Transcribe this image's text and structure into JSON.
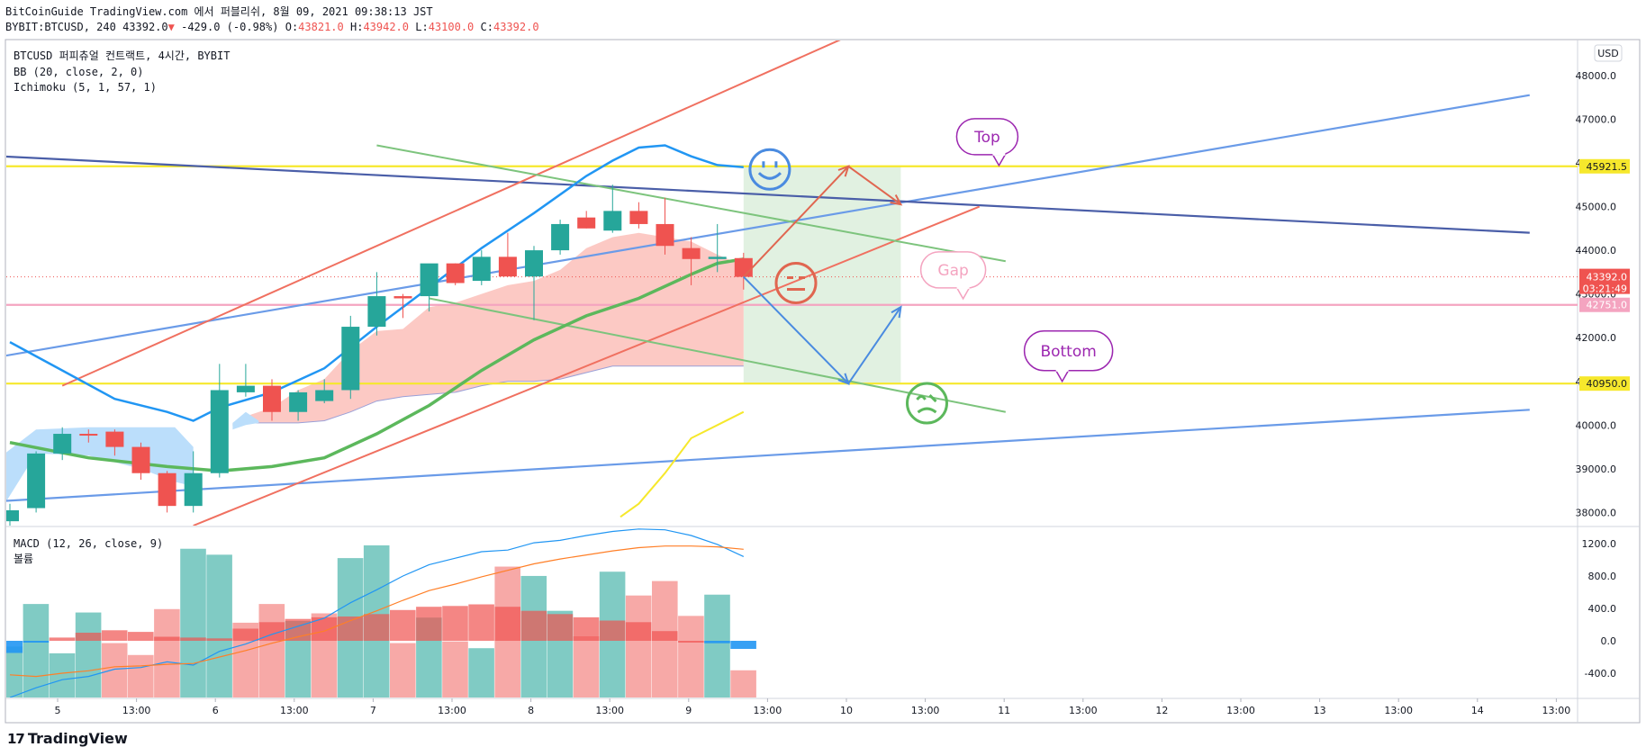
{
  "header": {
    "line1": "BitCoinGuide TradingView.com 에서 퍼블리쉬, 8월 09, 2021 09:38:13 JST",
    "symbol": "BYBIT:BTCUSD, 240",
    "last": "43392.0",
    "arrow": "▼",
    "change": "-429.0 (-0.98%)",
    "o_label": "O:",
    "o": "43821.0",
    "h_label": "H:",
    "h": "43942.0",
    "l_label": "L:",
    "l": "43100.0",
    "c_label": "C:",
    "c": "43392.0"
  },
  "legend": {
    "title": "BTCUSD 퍼피츄얼 컨트랙트, 4시간, BYBIT",
    "bb": "BB (20, close, 2, 0)",
    "ichimoku": "Ichimoku (5, 1, 57, 1)",
    "macd": "MACD (12, 26, close, 9)",
    "volume": "볼륨"
  },
  "currency": "USD",
  "footer": {
    "logo": "17",
    "brand": "TradingView"
  },
  "annotations": {
    "top": "Top",
    "gap": "Gap",
    "bottom": "Bottom"
  },
  "colors": {
    "up": "#26a69a",
    "down": "#ef5350",
    "upVol": "#80cbc4",
    "downVol": "#f7a9a7",
    "bbBasis": "#2196f3",
    "trendBlue": "#6a9be8",
    "trendNavy": "#4a5ea8",
    "trendRed": "#f07060",
    "trendGreen": "#7dc47d",
    "cloud": "#fcc9c4",
    "cloudBlue": "#bbdefb",
    "kijun": "#5cb85c",
    "yellow": "#f6e82c",
    "pinkLine": "#f4a4c0",
    "smileBlue": "#4a8be0",
    "neutralRed": "#e06650",
    "frownGreen": "#5cb85c",
    "purple": "#9c27b0"
  },
  "chart_data": [
    {
      "type": "candlestick",
      "title": "BTCUSD 퍼피츄얼 컨트랙트, 4시간, BYBIT",
      "ylim": [
        37700,
        48800
      ],
      "price_ticks": [
        "48000.0",
        "47000.0",
        "46000.0",
        "45000.0",
        "44000.0",
        "43000.0",
        "42000.0",
        "41000.0",
        "40000.0",
        "39000.0",
        "38000.0"
      ],
      "price_tick_values": [
        48000,
        47000,
        46000,
        45000,
        44000,
        43000,
        42000,
        41000,
        40000,
        39000,
        38000
      ],
      "time_ticks": [
        "5",
        "13:00",
        "6",
        "13:00",
        "7",
        "13:00",
        "8",
        "13:00",
        "9",
        "13:00",
        "10",
        "13:00",
        "11",
        "13:00",
        "12",
        "13:00",
        "13",
        "13:00",
        "14",
        "13:00"
      ],
      "price_labels": [
        {
          "value": 45921.5,
          "text": "45921.5",
          "style": "yellow"
        },
        {
          "value": 43392.0,
          "text": "43392.0",
          "sub": "03:21:49",
          "style": "red"
        },
        {
          "value": 42751.0,
          "text": "42751.0",
          "style": "pink"
        },
        {
          "value": 40950.0,
          "text": "40950.0",
          "style": "yellow"
        }
      ],
      "candles": [
        {
          "o": 37800,
          "h": 38200,
          "l": 37500,
          "c": 38050
        },
        {
          "o": 38100,
          "h": 39400,
          "l": 38000,
          "c": 39350
        },
        {
          "o": 39350,
          "h": 39950,
          "l": 39200,
          "c": 39800
        },
        {
          "o": 39800,
          "h": 39900,
          "l": 39600,
          "c": 39780
        },
        {
          "o": 39850,
          "h": 39900,
          "l": 39300,
          "c": 39500
        },
        {
          "o": 39500,
          "h": 39600,
          "l": 38750,
          "c": 38900
        },
        {
          "o": 38900,
          "h": 38950,
          "l": 38000,
          "c": 38150
        },
        {
          "o": 38150,
          "h": 39400,
          "l": 38000,
          "c": 38900
        },
        {
          "o": 38900,
          "h": 41400,
          "l": 38800,
          "c": 40800
        },
        {
          "o": 40750,
          "h": 41400,
          "l": 40650,
          "c": 40900
        },
        {
          "o": 40900,
          "h": 41050,
          "l": 40100,
          "c": 40300
        },
        {
          "o": 40300,
          "h": 40800,
          "l": 40100,
          "c": 40750
        },
        {
          "o": 40550,
          "h": 41050,
          "l": 40500,
          "c": 40800
        },
        {
          "o": 40800,
          "h": 42500,
          "l": 40600,
          "c": 42250
        },
        {
          "o": 42250,
          "h": 43500,
          "l": 42050,
          "c": 42950
        },
        {
          "o": 42950,
          "h": 43000,
          "l": 42450,
          "c": 42900
        },
        {
          "o": 42950,
          "h": 43600,
          "l": 42600,
          "c": 43700
        },
        {
          "o": 43700,
          "h": 43700,
          "l": 43200,
          "c": 43250
        },
        {
          "o": 43300,
          "h": 44000,
          "l": 43200,
          "c": 43850
        },
        {
          "o": 43850,
          "h": 44400,
          "l": 43400,
          "c": 43400
        },
        {
          "o": 43400,
          "h": 44100,
          "l": 42400,
          "c": 44000
        },
        {
          "o": 44000,
          "h": 44700,
          "l": 43900,
          "c": 44600
        },
        {
          "o": 44750,
          "h": 44900,
          "l": 44500,
          "c": 44500
        },
        {
          "o": 44450,
          "h": 45500,
          "l": 44400,
          "c": 44900
        },
        {
          "o": 44900,
          "h": 45100,
          "l": 44500,
          "c": 44600
        },
        {
          "o": 44600,
          "h": 45200,
          "l": 43900,
          "c": 44100
        },
        {
          "o": 44050,
          "h": 44300,
          "l": 43200,
          "c": 43800
        },
        {
          "o": 43800,
          "h": 44600,
          "l": 43500,
          "c": 43850
        },
        {
          "o": 43821,
          "h": 43942,
          "l": 43100,
          "c": 43392
        }
      ],
      "bb_basis": [
        {
          "i": 0,
          "v": 41900
        },
        {
          "i": 2,
          "v": 41250
        },
        {
          "i": 4,
          "v": 40600
        },
        {
          "i": 6,
          "v": 40300
        },
        {
          "i": 7,
          "v": 40100
        },
        {
          "i": 8,
          "v": 40400
        },
        {
          "i": 10,
          "v": 40750
        },
        {
          "i": 12,
          "v": 41300
        },
        {
          "i": 14,
          "v": 42250
        },
        {
          "i": 16,
          "v": 43150
        },
        {
          "i": 18,
          "v": 44050
        },
        {
          "i": 20,
          "v": 44850
        },
        {
          "i": 22,
          "v": 45700
        },
        {
          "i": 23,
          "v": 46050
        },
        {
          "i": 24,
          "v": 46350
        },
        {
          "i": 25,
          "v": 46400
        },
        {
          "i": 26,
          "v": 46150
        },
        {
          "i": 27,
          "v": 45950
        },
        {
          "i": 28,
          "v": 45900
        }
      ],
      "kijun": [
        {
          "i": 0,
          "v": 39600
        },
        {
          "i": 3,
          "v": 39250
        },
        {
          "i": 6,
          "v": 39050
        },
        {
          "i": 8,
          "v": 38950
        },
        {
          "i": 10,
          "v": 39050
        },
        {
          "i": 12,
          "v": 39250
        },
        {
          "i": 14,
          "v": 39800
        },
        {
          "i": 16,
          "v": 40450
        },
        {
          "i": 18,
          "v": 41250
        },
        {
          "i": 20,
          "v": 41950
        },
        {
          "i": 22,
          "v": 42500
        },
        {
          "i": 24,
          "v": 42900
        },
        {
          "i": 26,
          "v": 43450
        },
        {
          "i": 27,
          "v": 43700
        },
        {
          "i": 28,
          "v": 43800
        }
      ],
      "chikou": [
        {
          "i": 23.3,
          "v": 37900
        },
        {
          "i": 24,
          "v": 38200
        },
        {
          "i": 25,
          "v": 38900
        },
        {
          "i": 26,
          "v": 39700
        },
        {
          "i": 27,
          "v": 40000
        },
        {
          "i": 28,
          "v": 40300
        }
      ],
      "cloud_upper": [
        {
          "i": 8.5,
          "v": 40050
        },
        {
          "i": 9,
          "v": 40200
        },
        {
          "i": 10,
          "v": 40400
        },
        {
          "i": 11,
          "v": 40800
        },
        {
          "i": 12,
          "v": 41050
        },
        {
          "i": 13,
          "v": 41700
        },
        {
          "i": 14,
          "v": 42150
        },
        {
          "i": 15,
          "v": 42200
        },
        {
          "i": 16,
          "v": 42700
        },
        {
          "i": 17,
          "v": 42800
        },
        {
          "i": 18,
          "v": 43000
        },
        {
          "i": 19,
          "v": 43200
        },
        {
          "i": 20,
          "v": 43300
        },
        {
          "i": 21,
          "v": 43550
        },
        {
          "i": 22,
          "v": 44050
        },
        {
          "i": 23,
          "v": 44300
        },
        {
          "i": 24,
          "v": 44400
        },
        {
          "i": 25,
          "v": 44300
        },
        {
          "i": 26,
          "v": 44200
        },
        {
          "i": 27,
          "v": 43900
        },
        {
          "i": 28,
          "v": 43650
        }
      ],
      "cloud_lower": [
        {
          "i": 8.5,
          "v": 40000
        },
        {
          "i": 9,
          "v": 40050
        },
        {
          "i": 10,
          "v": 40050
        },
        {
          "i": 11,
          "v": 40050
        },
        {
          "i": 12,
          "v": 40100
        },
        {
          "i": 13,
          "v": 40300
        },
        {
          "i": 14,
          "v": 40550
        },
        {
          "i": 15,
          "v": 40650
        },
        {
          "i": 16,
          "v": 40700
        },
        {
          "i": 17,
          "v": 40750
        },
        {
          "i": 18,
          "v": 40900
        },
        {
          "i": 19,
          "v": 41000
        },
        {
          "i": 20,
          "v": 41000
        },
        {
          "i": 21,
          "v": 41050
        },
        {
          "i": 22,
          "v": 41200
        },
        {
          "i": 23,
          "v": 41350
        },
        {
          "i": 24,
          "v": 41350
        },
        {
          "i": 25,
          "v": 41350
        },
        {
          "i": 26,
          "v": 41350
        },
        {
          "i": 27,
          "v": 41350
        },
        {
          "i": 28,
          "v": 41350
        }
      ],
      "cloud_blue_upper": [
        {
          "i": -0.3,
          "v": 39300
        },
        {
          "i": 1,
          "v": 39900
        },
        {
          "i": 3,
          "v": 39950
        },
        {
          "i": 5,
          "v": 39950
        },
        {
          "i": 6.3,
          "v": 39950
        },
        {
          "i": 7,
          "v": 39500
        }
      ],
      "cloud_blue_lower": [
        {
          "i": -0.3,
          "v": 38100
        },
        {
          "i": 1,
          "v": 39350
        },
        {
          "i": 3,
          "v": 39300
        },
        {
          "i": 5,
          "v": 39000
        },
        {
          "i": 6.3,
          "v": 38700
        },
        {
          "i": 7,
          "v": 38600
        }
      ],
      "cloud_blue2_upper": [
        {
          "i": 8.5,
          "v": 40050
        },
        {
          "i": 9,
          "v": 40300
        },
        {
          "i": 9.5,
          "v": 40100
        }
      ],
      "cloud_blue2_lower": [
        {
          "i": 8.5,
          "v": 39900
        },
        {
          "i": 9,
          "v": 40000
        },
        {
          "i": 9.5,
          "v": 40050
        }
      ],
      "h_lines": [
        {
          "value": 45921.5,
          "color": "yellow"
        },
        {
          "value": 42751.0,
          "color": "pinkLine"
        },
        {
          "value": 40950.0,
          "color": "yellow"
        }
      ],
      "trendlines": [
        {
          "p1": {
            "i": -2,
            "v": 41400
          },
          "p2": {
            "i": 58,
            "v": 47550
          },
          "color": "trendBlue",
          "w": 2.2
        },
        {
          "p1": {
            "i": -2,
            "v": 38200
          },
          "p2": {
            "i": 58,
            "v": 40350
          },
          "color": "trendBlue",
          "w": 2.2
        },
        {
          "p1": {
            "i": -2,
            "v": 46200
          },
          "p2": {
            "i": 58,
            "v": 44400
          },
          "color": "trendNavy",
          "w": 2.2
        },
        {
          "p1": {
            "i": 2,
            "v": 40900
          },
          "p2": {
            "i": 35,
            "v": 49700
          },
          "color": "trendRed",
          "w": 2
        },
        {
          "p1": {
            "i": 7,
            "v": 37700
          },
          "p2": {
            "i": 37,
            "v": 45000
          },
          "color": "trendRed",
          "w": 2
        },
        {
          "p1": {
            "i": 14,
            "v": 46400
          },
          "p2": {
            "i": 38,
            "v": 43750
          },
          "color": "trendGreen",
          "w": 2
        },
        {
          "p1": {
            "i": 16,
            "v": 42900
          },
          "p2": {
            "i": 38,
            "v": 40300
          },
          "color": "trendGreen",
          "w": 2
        }
      ],
      "projection_box": {
        "i1": 28,
        "i2": 34,
        "top": 45921.5,
        "bottom": 40950.0
      },
      "arrows_red": [
        {
          "i": 28,
          "v": 43392
        },
        {
          "i": 32,
          "v": 45921.5
        },
        {
          "i": 34,
          "v": 45050
        }
      ],
      "arrows_blue": [
        {
          "i": 28,
          "v": 43392
        },
        {
          "i": 32,
          "v": 40950
        },
        {
          "i": 34,
          "v": 42700
        }
      ],
      "emojis": [
        {
          "kind": "smile",
          "i": 29,
          "v": 45850,
          "color": "smileBlue"
        },
        {
          "kind": "neutral",
          "i": 30,
          "v": 43250,
          "color": "neutralRed"
        },
        {
          "kind": "frown",
          "i": 35,
          "v": 40500,
          "color": "frownGreen"
        }
      ],
      "bubbles": [
        {
          "key": "top",
          "i": 37.3,
          "v": 46600,
          "w": 68,
          "h": 40,
          "color": "purple",
          "tail": "left"
        },
        {
          "key": "gap",
          "i": 36,
          "v": 43550,
          "w": 72,
          "h": 40,
          "color": "pinkLine",
          "tail": "left"
        },
        {
          "key": "bottom",
          "i": 40.4,
          "v": 41700,
          "w": 98,
          "h": 44,
          "color": "purple",
          "tail": "right"
        }
      ]
    },
    {
      "type": "bar",
      "title": "MACD (12, 26, close, 9)",
      "ylim": [
        -700,
        1400
      ],
      "y_ticks": [
        "1200.0",
        "800.0",
        "400.0",
        "0.0",
        "-400.0"
      ],
      "y_tick_values": [
        1200,
        800,
        400,
        0,
        -400
      ],
      "volume": [
        {
          "v": 600,
          "up": true
        },
        {
          "v": 1100,
          "up": true
        },
        {
          "v": 520,
          "up": true
        },
        {
          "v": 1000,
          "up": true
        },
        {
          "v": 640,
          "up": false
        },
        {
          "v": 500,
          "up": false
        },
        {
          "v": 1040,
          "up": false
        },
        {
          "v": 1750,
          "up": true
        },
        {
          "v": 1680,
          "up": true
        },
        {
          "v": 880,
          "up": false
        },
        {
          "v": 1100,
          "up": false
        },
        {
          "v": 900,
          "up": true
        },
        {
          "v": 990,
          "up": false
        },
        {
          "v": 1640,
          "up": true
        },
        {
          "v": 1790,
          "up": true
        },
        {
          "v": 640,
          "up": false
        },
        {
          "v": 940,
          "up": true
        },
        {
          "v": 660,
          "up": false
        },
        {
          "v": 580,
          "up": true
        },
        {
          "v": 1540,
          "up": false
        },
        {
          "v": 1430,
          "up": true
        },
        {
          "v": 1020,
          "up": true
        },
        {
          "v": 720,
          "up": false
        },
        {
          "v": 1480,
          "up": true
        },
        {
          "v": 1200,
          "up": false
        },
        {
          "v": 1370,
          "up": false
        },
        {
          "v": 960,
          "up": false
        },
        {
          "v": 1210,
          "up": true
        },
        {
          "v": 320,
          "up": false
        }
      ],
      "histogram": [
        -150,
        -20,
        40,
        100,
        130,
        110,
        50,
        40,
        30,
        150,
        230,
        270,
        290,
        300,
        330,
        380,
        420,
        430,
        450,
        420,
        370,
        330,
        290,
        250,
        230,
        120,
        0,
        -30,
        -100
      ],
      "macd": [
        -700,
        -580,
        -480,
        -440,
        -350,
        -330,
        -260,
        -300,
        -130,
        -40,
        80,
        180,
        280,
        470,
        630,
        800,
        940,
        1020,
        1100,
        1120,
        1210,
        1240,
        1300,
        1350,
        1380,
        1370,
        1300,
        1190,
        1040
      ],
      "signal": [
        -420,
        -440,
        -400,
        -370,
        -320,
        -310,
        -290,
        -280,
        -200,
        -120,
        -30,
        50,
        120,
        250,
        370,
        500,
        620,
        700,
        790,
        870,
        950,
        1010,
        1060,
        1110,
        1150,
        1170,
        1170,
        1160,
        1130
      ]
    }
  ]
}
